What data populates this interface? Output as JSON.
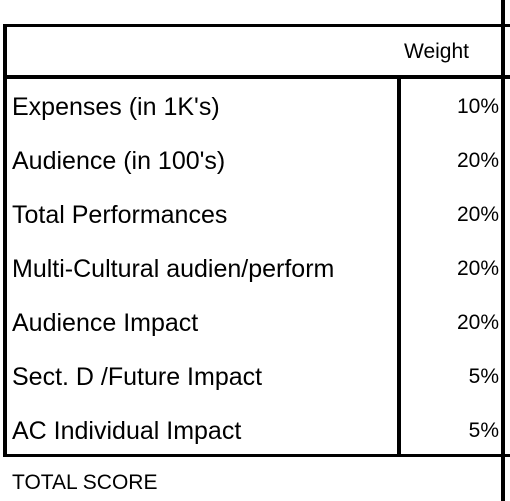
{
  "table": {
    "header": {
      "weight_label": "Weight"
    },
    "rows": [
      {
        "label": "Expenses (in 1K's)",
        "weight": "10%"
      },
      {
        "label": "Audience (in 100's)",
        "weight": "20%"
      },
      {
        "label": "Total Performances",
        "weight": "20%"
      },
      {
        "label": "Multi-Cultural audien/perform",
        "weight": "20%"
      },
      {
        "label": "Audience Impact",
        "weight": "20%"
      },
      {
        "label": "Sect. D /Future Impact",
        "weight": "5%"
      },
      {
        "label": "AC Individual Impact",
        "weight": "5%"
      }
    ],
    "footer": {
      "total_label": "TOTAL SCORE"
    }
  }
}
